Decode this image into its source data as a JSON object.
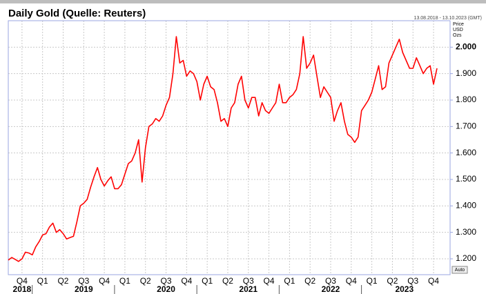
{
  "chart_data": {
    "type": "line",
    "title": "Daily Gold (Quelle: Reuters)",
    "subtitle": "13.08.2018 - 13.10.2023 (GMT)",
    "y_axis_label": [
      "Price",
      "USD",
      "Ozs"
    ],
    "scale_button": "Auto",
    "categories": [
      null,
      null,
      null,
      null,
      "Q4",
      null,
      null,
      null,
      null,
      null,
      "Q1",
      null,
      null,
      null,
      null,
      null,
      "Q2",
      null,
      null,
      null,
      null,
      null,
      "Q3",
      null,
      null,
      null,
      null,
      null,
      "Q4",
      null,
      null,
      null,
      null,
      null,
      "Q1",
      null,
      null,
      null,
      null,
      null,
      "Q2",
      null,
      null,
      null,
      null,
      null,
      "Q3",
      null,
      null,
      null,
      null,
      null,
      "Q4",
      null,
      null,
      null,
      null,
      null,
      "Q1",
      null,
      null,
      null,
      null,
      null,
      "Q2",
      null,
      null,
      null,
      null,
      null,
      "Q3",
      null,
      null,
      null,
      null,
      null,
      "Q4",
      null,
      null,
      null,
      null,
      null,
      "Q1",
      null,
      null,
      null,
      null,
      null,
      "Q2",
      null,
      null,
      null,
      null,
      null,
      "Q3",
      null,
      null,
      null,
      null,
      null,
      "Q4",
      null,
      null,
      null,
      null,
      null,
      "Q1",
      null,
      null,
      null,
      null,
      null,
      "Q2",
      null,
      null,
      null,
      null,
      null,
      "Q3",
      null,
      null,
      null,
      null,
      null,
      "Q4",
      null
    ],
    "years": [
      "2018",
      "2019",
      "2020",
      "2021",
      "2022",
      "2023"
    ],
    "series": [
      {
        "name": "Gold",
        "color": "#ff0000",
        "values": [
          1195,
          1205,
          1198,
          1190,
          1200,
          1225,
          1222,
          1215,
          1245,
          1265,
          1290,
          1295,
          1320,
          1335,
          1300,
          1310,
          1295,
          1275,
          1280,
          1285,
          1340,
          1400,
          1410,
          1425,
          1470,
          1510,
          1545,
          1500,
          1475,
          1495,
          1510,
          1465,
          1465,
          1480,
          1520,
          1560,
          1570,
          1600,
          1650,
          1490,
          1620,
          1700,
          1710,
          1730,
          1720,
          1740,
          1780,
          1810,
          1900,
          2040,
          1940,
          1950,
          1890,
          1910,
          1900,
          1870,
          1800,
          1860,
          1890,
          1850,
          1840,
          1790,
          1720,
          1730,
          1700,
          1770,
          1790,
          1860,
          1890,
          1800,
          1770,
          1810,
          1810,
          1740,
          1790,
          1760,
          1750,
          1770,
          1790,
          1860,
          1790,
          1790,
          1810,
          1820,
          1840,
          1900,
          2040,
          1920,
          1940,
          1970,
          1890,
          1810,
          1850,
          1830,
          1810,
          1720,
          1760,
          1790,
          1720,
          1670,
          1660,
          1640,
          1660,
          1760,
          1780,
          1800,
          1830,
          1880,
          1930,
          1840,
          1850,
          1940,
          1970,
          2000,
          2030,
          1980,
          1950,
          1920,
          1920,
          1960,
          1930,
          1900,
          1920,
          1930,
          1860,
          1920
        ]
      }
    ],
    "ylim": [
      1140,
      2100
    ],
    "yticks": [
      {
        "value": 1200,
        "label": "1.200"
      },
      {
        "value": 1300,
        "label": "1.300"
      },
      {
        "value": 1400,
        "label": "1.400"
      },
      {
        "value": 1500,
        "label": "1.500"
      },
      {
        "value": 1600,
        "label": "1.600"
      },
      {
        "value": 1700,
        "label": "1.700"
      },
      {
        "value": 1800,
        "label": "1.800"
      },
      {
        "value": 1900,
        "label": "1.900"
      },
      {
        "value": 2000,
        "label": "2.000"
      }
    ],
    "grid": true
  }
}
